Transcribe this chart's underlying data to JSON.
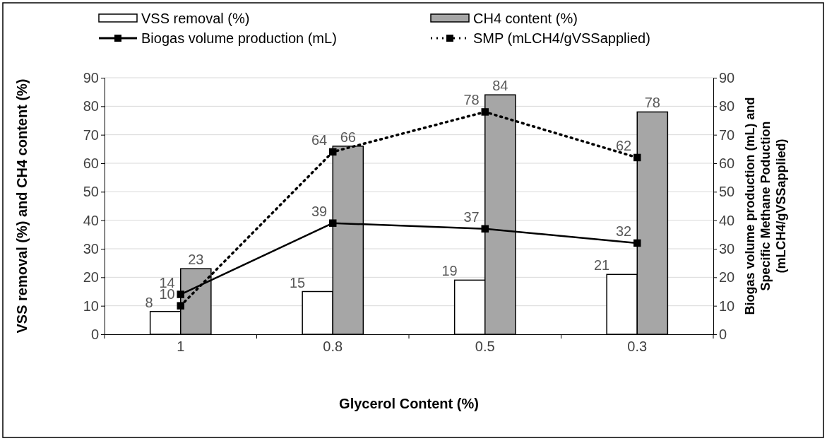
{
  "chart_data": {
    "type": "bar",
    "xlabel": "Glycerol Content (%)",
    "ylabel": "VSS removal (%) and CH4 content (%)",
    "y2label": "Biogas volume production (mL) and\nSpecific Methane Poduction\n(mLCH4/gVSSapplied)",
    "categories": [
      "1",
      "0.8",
      "0.5",
      "0.3"
    ],
    "series": [
      {
        "name": "VSS removal (%)",
        "color": "#ffffff",
        "values": [
          8,
          15,
          19,
          21
        ]
      },
      {
        "name": "CH4 content (%)",
        "color": "#a6a6a6",
        "values": [
          23,
          66,
          84,
          78
        ]
      },
      {
        "name": "Biogas volume production (mL)",
        "type": "line",
        "axis": "y2",
        "color": "#000000",
        "marker": "square",
        "line_style": "solid",
        "values": [
          14,
          39,
          37,
          32
        ]
      },
      {
        "name": "SMP (mLCH4/gVSSapplied)",
        "type": "line",
        "axis": "y2",
        "color": "#000000",
        "marker": "square",
        "line_style": "dotted",
        "values": [
          10,
          64,
          78,
          62
        ]
      }
    ],
    "ylim": [
      0,
      90
    ],
    "yticks": [
      0,
      10,
      20,
      30,
      40,
      50,
      60,
      70,
      80,
      90
    ],
    "y2lim": [
      0,
      90
    ],
    "y2ticks": [
      0,
      10,
      20,
      30,
      40,
      50,
      60,
      70,
      80,
      90
    ],
    "grid": "y",
    "legend": "top",
    "data_labels": true
  }
}
